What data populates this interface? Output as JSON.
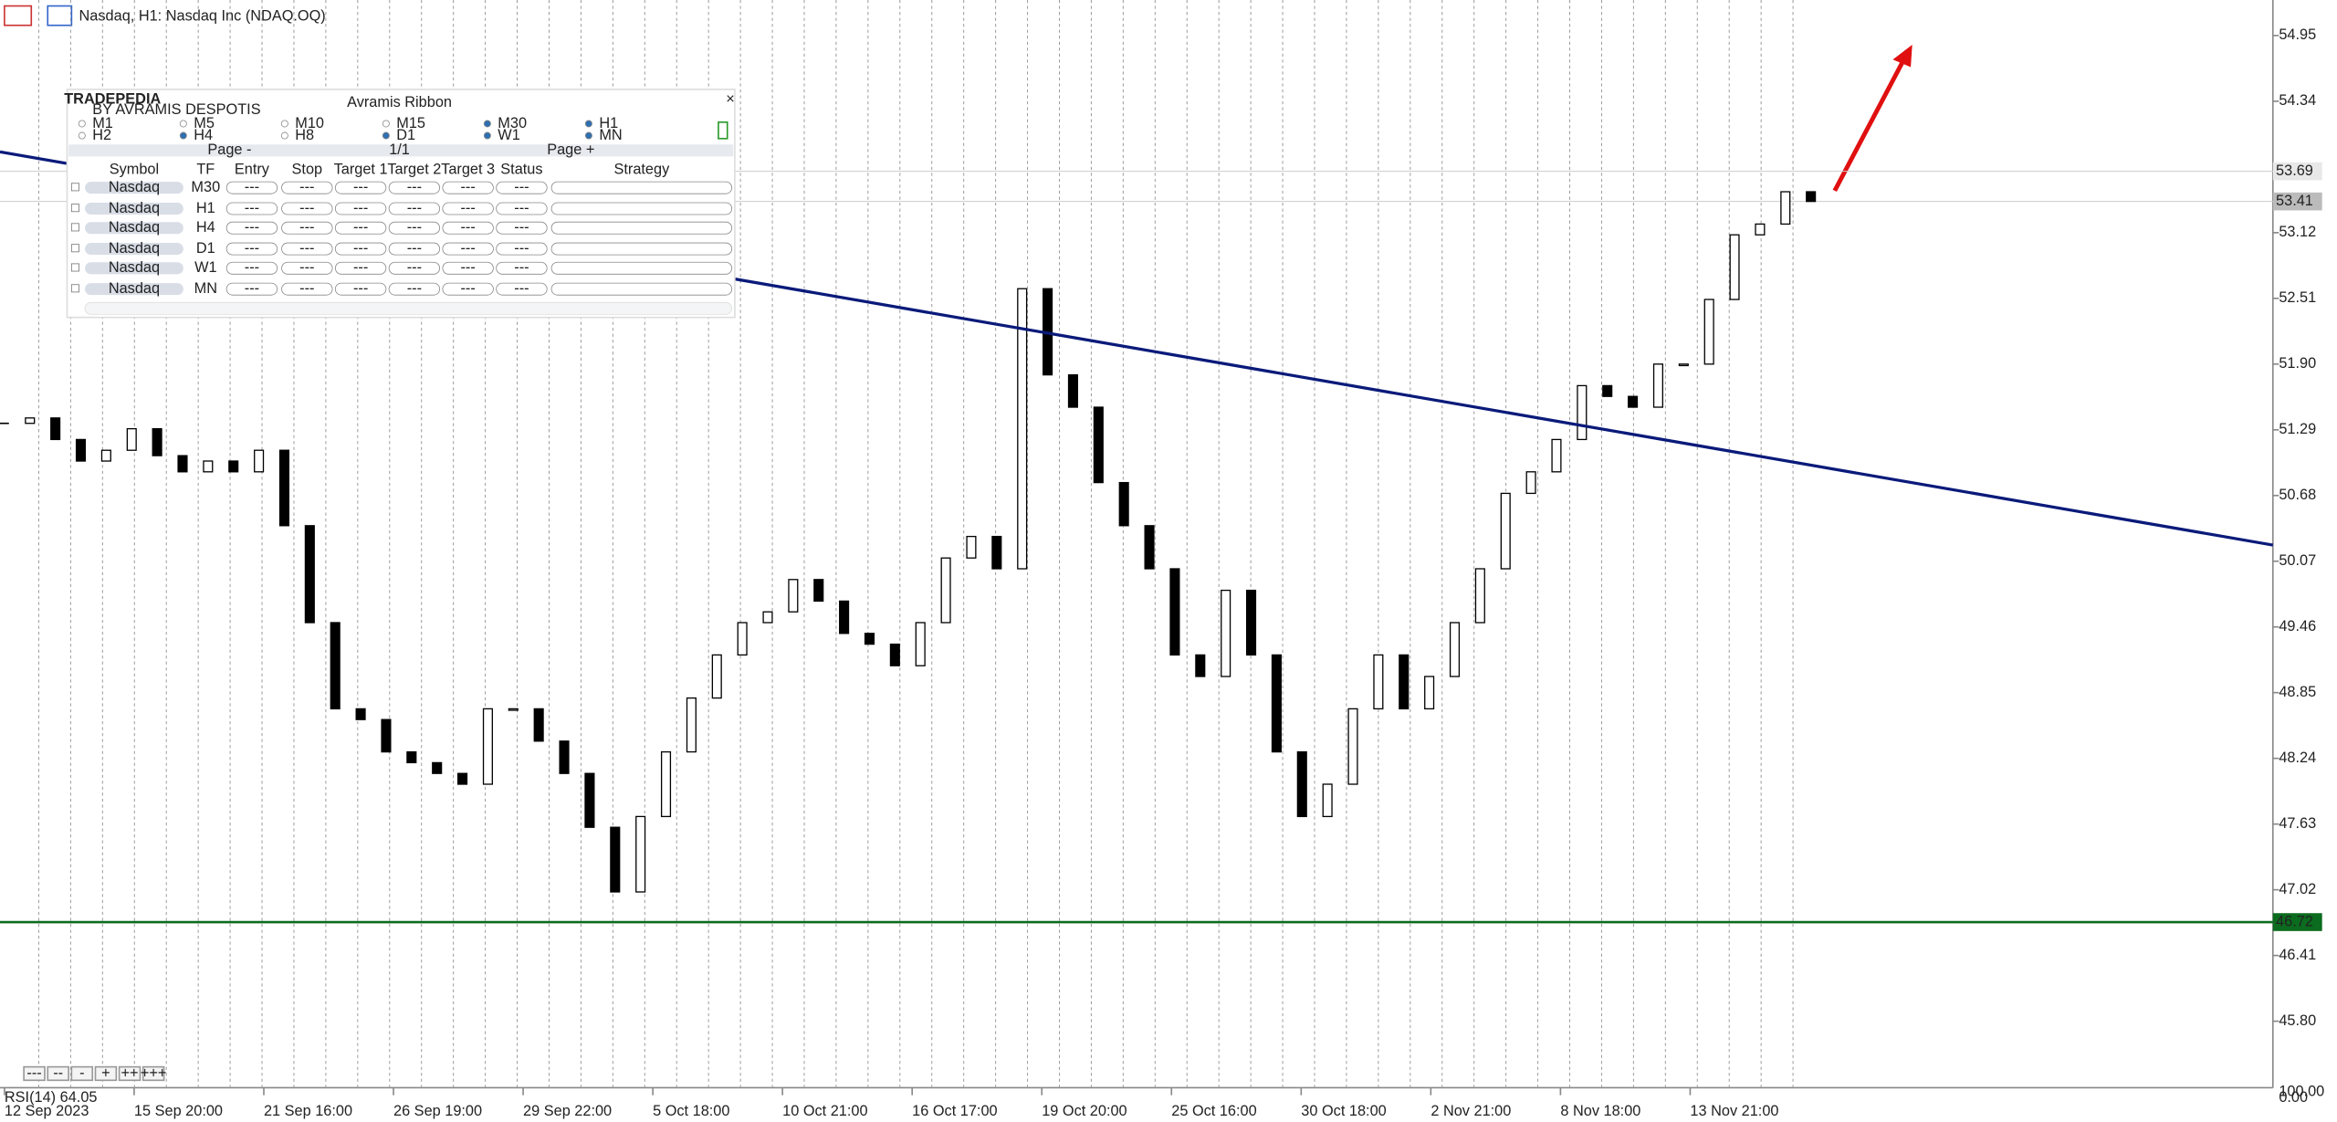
{
  "header": {
    "title": "Nasdaq, H1:  Nasdaq Inc (NDAQ.OQ)"
  },
  "chart_data": {
    "type": "candlestick",
    "closes": [
      51.35,
      51.4,
      51.2,
      51.0,
      51.1,
      51.3,
      51.05,
      50.9,
      51.0,
      50.9,
      51.1,
      50.4,
      49.5,
      48.7,
      48.6,
      48.3,
      48.2,
      48.1,
      48.0,
      48.7,
      48.7,
      48.4,
      48.1,
      47.6,
      47.0,
      47.7,
      48.3,
      48.8,
      49.2,
      49.5,
      49.6,
      49.9,
      49.7,
      49.4,
      49.3,
      49.1,
      49.5,
      50.1,
      50.3,
      50.0,
      52.6,
      51.8,
      51.5,
      50.8,
      50.4,
      50.0,
      49.2,
      49.0,
      49.8,
      49.2,
      48.3,
      47.7,
      48.0,
      48.7,
      49.2,
      48.7,
      49.0,
      49.5,
      50.0,
      50.7,
      50.9,
      51.2,
      51.7,
      51.6,
      51.5,
      51.9,
      51.9,
      52.5,
      53.1,
      53.2,
      53.5,
      53.41
    ],
    "ylim": [
      45.21,
      55.28
    ],
    "yticks": [
      54.95,
      54.34,
      53.12,
      52.51,
      {
        "value": 51.9,
        "label": "51.90"
      },
      51.29,
      50.68,
      50.07,
      49.46,
      48.85,
      48.24,
      47.63,
      47.02,
      46.41,
      {
        "value": 45.8,
        "label": "45.80"
      }
    ],
    "x_labels": [
      "12 Sep 2023",
      "15 Sep 20:00",
      "21 Sep 16:00",
      "26 Sep 19:00",
      "29 Sep 22:00",
      "5 Oct 18:00",
      "10 Oct 21:00",
      "16 Oct 17:00",
      "19 Oct 20:00",
      "25 Oct 16:00",
      "30 Oct 18:00",
      "2 Nov 21:00",
      "8 Nov 18:00",
      "13 Nov 21:00"
    ],
    "trendline": [
      53.87,
      50.22
    ],
    "support_level": 46.72,
    "price_labels": [
      53.69,
      53.41
    ],
    "trendline_color": "#0a1a7a",
    "support_color": "#0b6b1e"
  },
  "indicator": {
    "label": "RSI(14) 64.05",
    "scale_labels": [
      "100.00",
      "0.00"
    ]
  },
  "zoom_buttons": [
    "---",
    "--",
    "-",
    "+",
    "++",
    "+++"
  ],
  "panel": {
    "logo": "TRADEPEDIA",
    "logo_sub": "BY AVRAMIS DESPOTIS",
    "title": "Avramis Ribbon",
    "timeframes": [
      {
        "label": "M1",
        "checked": false
      },
      {
        "label": "M5",
        "checked": false
      },
      {
        "label": "M10",
        "checked": false
      },
      {
        "label": "M15",
        "checked": false
      },
      {
        "label": "M30",
        "checked": true
      },
      {
        "label": "H1",
        "checked": true
      },
      {
        "label": "H2",
        "checked": false
      },
      {
        "label": "H4",
        "checked": true
      },
      {
        "label": "H8",
        "checked": false
      },
      {
        "label": "D1",
        "checked": true
      },
      {
        "label": "W1",
        "checked": true
      },
      {
        "label": "MN",
        "checked": true
      }
    ],
    "page_prev": "Page -",
    "page_info": "1/1",
    "page_next": "Page +",
    "columns": [
      "Symbol",
      "TF",
      "Entry",
      "Stop",
      "Target 1",
      "Target 2",
      "Target 3",
      "Status",
      "Strategy"
    ],
    "rows": [
      {
        "symbol": "Nasdaq",
        "tf": "M30",
        "cells": [
          "---",
          "---",
          "---",
          "---",
          "---",
          "---"
        ]
      },
      {
        "symbol": "Nasdaq",
        "tf": "H1",
        "cells": [
          "---",
          "---",
          "---",
          "---",
          "---",
          "---"
        ]
      },
      {
        "symbol": "Nasdaq",
        "tf": "H4",
        "cells": [
          "---",
          "---",
          "---",
          "---",
          "---",
          "---"
        ]
      },
      {
        "symbol": "Nasdaq",
        "tf": "D1",
        "cells": [
          "---",
          "---",
          "---",
          "---",
          "---",
          "---"
        ]
      },
      {
        "symbol": "Nasdaq",
        "tf": "W1",
        "cells": [
          "---",
          "---",
          "---",
          "---",
          "---",
          "---"
        ]
      },
      {
        "symbol": "Nasdaq",
        "tf": "MN",
        "cells": [
          "---",
          "---",
          "---",
          "---",
          "---",
          "---"
        ]
      }
    ]
  }
}
